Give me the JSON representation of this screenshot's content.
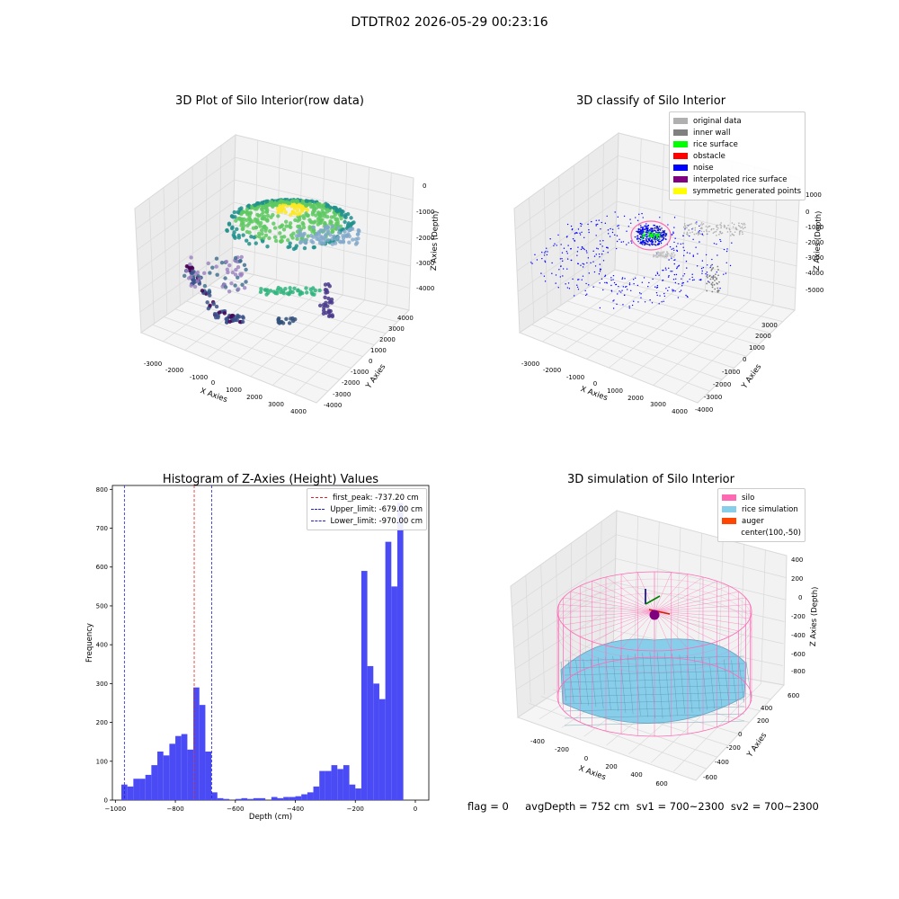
{
  "suptitle": "DTDTR02 2026-05-29 00:23:16",
  "status_line": "flag = 0     avgDepth = 752 cm  sv1 = 700~2300  sv2 = 700~2300",
  "colors": {
    "hist_bar": "#4b4bf5",
    "first_peak": "#dd2222",
    "limits": "#2222cc",
    "pane": "#f2f2f2",
    "grid": "#d9d9d9"
  },
  "chart_data": [
    {
      "type": "scatter",
      "subtype": "3d",
      "title": "3D Plot of Silo Interior(row data)",
      "xlabel": "X Axies",
      "ylabel": "Y Axies",
      "zlabel": "Z Axies (Depth)",
      "xticks": [
        "-3000",
        "-2000",
        "-1000",
        "0",
        "1000",
        "2000",
        "3000",
        "4000"
      ],
      "yticks": [
        "-4000",
        "-3000",
        "-2000",
        "-1000",
        "0",
        "1000",
        "2000",
        "3000",
        "4000"
      ],
      "zticks": [
        "0",
        "-1000",
        "-2000",
        "-3000",
        "-4000"
      ],
      "colormap": "viridis",
      "grid": true
    },
    {
      "type": "scatter",
      "subtype": "3d",
      "title": "3D classify of Silo Interior",
      "xlabel": "X Axies",
      "ylabel": "Y Axies",
      "zlabel": "Z Axies (Depth)",
      "xticks": [
        "-3000",
        "-2000",
        "-1000",
        "0",
        "1000",
        "2000",
        "3000",
        "4000"
      ],
      "yticks": [
        "-4000",
        "-3000",
        "-2000",
        "-1000",
        "0",
        "1000",
        "2000",
        "3000"
      ],
      "zticks": [
        "1000",
        "0",
        "-1000",
        "-2000",
        "-3000",
        "-4000",
        "-5000"
      ],
      "zticks_note": "top tick partially hidden",
      "legend_position": "top-right",
      "legend": [
        {
          "label": "original data",
          "color": "#b0b0b0"
        },
        {
          "label": "inner wall",
          "color": "#808080"
        },
        {
          "label": "rice surface",
          "color": "#00ff00"
        },
        {
          "label": "obstacle",
          "color": "#ff0000"
        },
        {
          "label": "noise",
          "color": "#0000ff"
        },
        {
          "label": "interpolated rice surface",
          "color": "#800080"
        },
        {
          "label": "symmetric generated points",
          "color": "#ffff00"
        }
      ],
      "grid": true
    },
    {
      "type": "bar",
      "subtype": "histogram",
      "title": "Histogram of Z-Axies (Height) Values",
      "xlabel": "Depth (cm)",
      "ylabel": "Frequency",
      "xlim": [
        -1010,
        45
      ],
      "ylim": [
        0,
        810
      ],
      "xticks": [
        -1000,
        -800,
        -600,
        -400,
        -200,
        0
      ],
      "yticks": [
        0,
        100,
        200,
        300,
        400,
        500,
        600,
        700,
        800
      ],
      "bin_width": 20,
      "bin_starts": [
        -980,
        -960,
        -940,
        -920,
        -900,
        -880,
        -860,
        -840,
        -820,
        -800,
        -780,
        -760,
        -740,
        -720,
        -700,
        -680,
        -660,
        -640,
        -620,
        -600,
        -580,
        -560,
        -540,
        -520,
        -500,
        -480,
        -460,
        -440,
        -420,
        -400,
        -380,
        -360,
        -340,
        -320,
        -300,
        -280,
        -260,
        -240,
        -220,
        -200,
        -180,
        -160,
        -140,
        -120,
        -100,
        -80,
        -60,
        -40,
        -20,
        0
      ],
      "values": [
        40,
        35,
        55,
        55,
        65,
        90,
        125,
        115,
        145,
        165,
        170,
        130,
        290,
        245,
        125,
        20,
        5,
        3,
        0,
        3,
        5,
        3,
        5,
        5,
        0,
        8,
        5,
        8,
        8,
        10,
        15,
        20,
        35,
        75,
        75,
        90,
        80,
        90,
        40,
        30,
        590,
        345,
        300,
        260,
        665,
        550,
        765,
        0,
        0,
        0
      ],
      "vlines": [
        {
          "name": "first_peak",
          "label": "first_peak: -737.20 cm",
          "x": -737.2,
          "color": "#dd2222"
        },
        {
          "name": "upper_limit",
          "label": "Upper_limit: -679.00 cm",
          "x": -679.0,
          "color": "#2222cc"
        },
        {
          "name": "lower_limit",
          "label": "Lower_limit: -970.00 cm",
          "x": -970.0,
          "color": "#2222cc"
        }
      ],
      "legend_position": "top-right",
      "grid": false
    },
    {
      "type": "surface",
      "subtype": "3d",
      "title": "3D simulation of Silo Interior",
      "xlabel": "X Axies",
      "ylabel": "Y Axies",
      "zlabel": "Z Axies (Depth)",
      "xticks": [
        "-400",
        "-200",
        "0",
        "200",
        "400",
        "600"
      ],
      "yticks": [
        "-600",
        "-400",
        "-200",
        "0",
        "200",
        "400",
        "600"
      ],
      "zticks": [
        "400",
        "200",
        "0",
        "-200",
        "-400",
        "-600",
        "-800"
      ],
      "legend_position": "top-right",
      "legend": [
        {
          "label": "silo",
          "color": "#ff69b4"
        },
        {
          "label": "rice simulation",
          "color": "#87ceeb"
        },
        {
          "label": "auger",
          "color": "#ff4500"
        },
        {
          "label": "center(100,-50)",
          "color": ""
        }
      ],
      "grid": true
    }
  ]
}
